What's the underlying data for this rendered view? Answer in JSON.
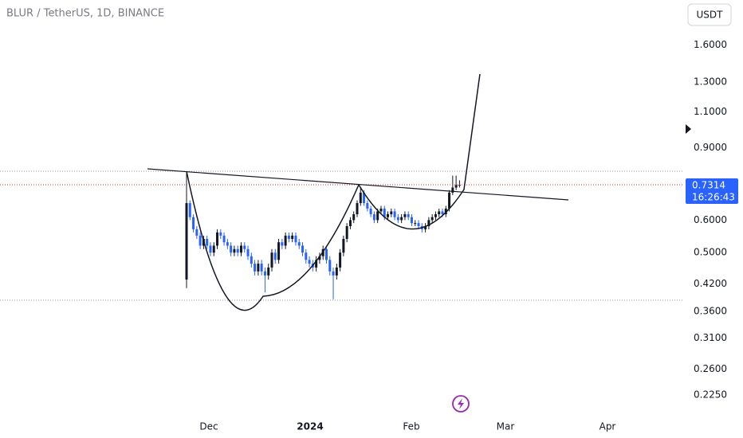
{
  "chart_data": {
    "type": "candlestick",
    "title": "BLUR / TetherUS, 1D, BINANCE",
    "currency": "USDT",
    "countdown": "16:26:43",
    "log_scale": true,
    "up_color": "#131722",
    "down_color": "#2962ff",
    "x_labels": [
      "Dec",
      "2024",
      "Feb",
      "Mar",
      "Apr"
    ],
    "ylim": [
      0.185,
      2.06
    ],
    "yticks": [
      {
        "value": 1.6,
        "label": "1.6000"
      },
      {
        "value": 1.3,
        "label": "1.3000"
      },
      {
        "value": 1.1,
        "label": "1.1000"
      },
      {
        "value": 0.9,
        "label": "0.9000"
      },
      {
        "value": 0.6,
        "label": "0.6000"
      },
      {
        "value": 0.5,
        "label": "0.5000"
      },
      {
        "value": 0.42,
        "label": "0.4200"
      },
      {
        "value": 0.36,
        "label": "0.3600"
      },
      {
        "value": 0.31,
        "label": "0.3100"
      },
      {
        "value": 0.26,
        "label": "0.2600"
      },
      {
        "value": 0.225,
        "label": "0.2250"
      }
    ],
    "open": [
      0.43,
      0.66,
      0.61,
      0.57,
      0.55,
      0.52,
      0.54,
      0.52,
      0.5,
      0.52,
      0.56,
      0.55,
      0.53,
      0.52,
      0.5,
      0.51,
      0.5,
      0.52,
      0.51,
      0.49,
      0.47,
      0.45,
      0.47,
      0.45,
      0.44,
      0.46,
      0.5,
      0.48,
      0.53,
      0.52,
      0.55,
      0.54,
      0.55,
      0.53,
      0.52,
      0.5,
      0.48,
      0.47,
      0.46,
      0.48,
      0.49,
      0.51,
      0.48,
      0.45,
      0.44,
      0.46,
      0.5,
      0.54,
      0.58,
      0.6,
      0.62,
      0.66,
      0.7,
      0.66,
      0.64,
      0.62,
      0.6,
      0.63,
      0.64,
      0.61,
      0.62,
      0.63,
      0.61,
      0.6,
      0.61,
      0.62,
      0.61,
      0.59,
      0.59,
      0.58,
      0.57,
      0.58,
      0.6,
      0.61,
      0.62,
      0.63,
      0.62,
      0.64,
      0.7,
      0.72,
      0.73
    ],
    "high": [
      0.78,
      0.67,
      0.62,
      0.58,
      0.56,
      0.55,
      0.55,
      0.53,
      0.53,
      0.57,
      0.57,
      0.56,
      0.54,
      0.53,
      0.52,
      0.52,
      0.53,
      0.53,
      0.52,
      0.5,
      0.48,
      0.48,
      0.48,
      0.46,
      0.47,
      0.51,
      0.51,
      0.54,
      0.54,
      0.56,
      0.56,
      0.56,
      0.56,
      0.54,
      0.53,
      0.51,
      0.49,
      0.48,
      0.49,
      0.5,
      0.52,
      0.52,
      0.49,
      0.46,
      0.47,
      0.51,
      0.55,
      0.59,
      0.61,
      0.63,
      0.67,
      0.72,
      0.71,
      0.67,
      0.65,
      0.63,
      0.64,
      0.65,
      0.65,
      0.63,
      0.64,
      0.64,
      0.62,
      0.62,
      0.63,
      0.63,
      0.62,
      0.6,
      0.6,
      0.59,
      0.59,
      0.61,
      0.62,
      0.63,
      0.64,
      0.64,
      0.65,
      0.71,
      0.77,
      0.77,
      0.75
    ],
    "low": [
      0.41,
      0.6,
      0.56,
      0.54,
      0.51,
      0.51,
      0.51,
      0.49,
      0.49,
      0.51,
      0.54,
      0.52,
      0.51,
      0.49,
      0.49,
      0.49,
      0.49,
      0.5,
      0.48,
      0.46,
      0.44,
      0.44,
      0.44,
      0.4,
      0.43,
      0.45,
      0.47,
      0.47,
      0.51,
      0.51,
      0.53,
      0.53,
      0.52,
      0.51,
      0.49,
      0.47,
      0.46,
      0.45,
      0.45,
      0.47,
      0.48,
      0.47,
      0.44,
      0.385,
      0.43,
      0.45,
      0.49,
      0.53,
      0.57,
      0.59,
      0.61,
      0.65,
      0.65,
      0.63,
      0.61,
      0.59,
      0.59,
      0.62,
      0.6,
      0.6,
      0.61,
      0.6,
      0.59,
      0.59,
      0.6,
      0.6,
      0.58,
      0.58,
      0.57,
      0.56,
      0.56,
      0.57,
      0.59,
      0.6,
      0.61,
      0.61,
      0.61,
      0.63,
      0.69,
      0.71,
      0.72
    ],
    "close": [
      0.66,
      0.61,
      0.57,
      0.55,
      0.52,
      0.54,
      0.52,
      0.5,
      0.52,
      0.56,
      0.55,
      0.53,
      0.52,
      0.5,
      0.51,
      0.5,
      0.52,
      0.51,
      0.49,
      0.47,
      0.45,
      0.47,
      0.45,
      0.44,
      0.46,
      0.5,
      0.48,
      0.53,
      0.52,
      0.55,
      0.54,
      0.55,
      0.53,
      0.52,
      0.5,
      0.48,
      0.47,
      0.46,
      0.48,
      0.49,
      0.51,
      0.48,
      0.45,
      0.44,
      0.46,
      0.5,
      0.54,
      0.58,
      0.6,
      0.62,
      0.66,
      0.7,
      0.66,
      0.64,
      0.62,
      0.6,
      0.63,
      0.64,
      0.61,
      0.62,
      0.63,
      0.61,
      0.6,
      0.61,
      0.62,
      0.61,
      0.59,
      0.59,
      0.58,
      0.57,
      0.58,
      0.6,
      0.61,
      0.62,
      0.63,
      0.62,
      0.64,
      0.7,
      0.72,
      0.73,
      0.7314
    ]
  }
}
